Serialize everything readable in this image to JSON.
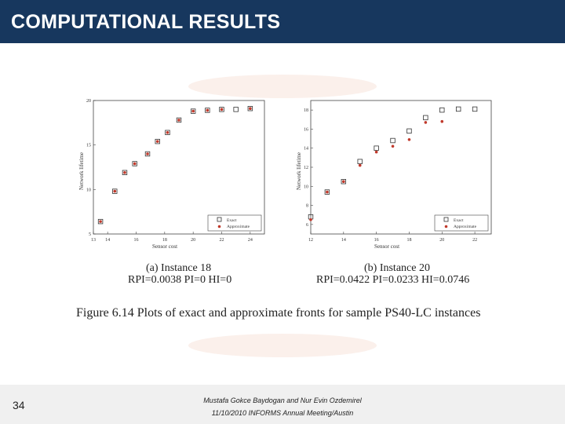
{
  "slide": {
    "title": "COMPUTATIONAL RESULTS"
  },
  "footer": {
    "page_number": "34",
    "authors": "Mustafa Gokce Baydogan and Nur Evin Ozdemirel",
    "event": "11/10/2010 INFORMS Annual Meeting/Austin"
  },
  "figure": {
    "caption": "Figure 6.14 Plots of exact and approximate fronts for sample PS40-LC instances",
    "panels": [
      {
        "subcaption": "(a) Instance 18",
        "metrics": "RPI=0.0038 PI=0 HI=0"
      },
      {
        "subcaption": "(b) Instance 20",
        "metrics": "RPI=0.0422 PI=0.0233 HI=0.0746"
      }
    ]
  },
  "colors": {
    "title_bar": "#17375e",
    "approx_marker": "#c0392b",
    "exact_marker": "#333333"
  },
  "chart_data": [
    {
      "type": "scatter",
      "xlabel": "Sensor cost",
      "ylabel": "Network lifetime",
      "xlim": [
        13,
        25
      ],
      "ylim": [
        5,
        20
      ],
      "xticks": [
        13,
        14,
        16,
        18,
        20,
        22,
        24
      ],
      "yticks": [
        5,
        10,
        15,
        20
      ],
      "series": [
        {
          "name": "Exact",
          "marker": "square",
          "x": [
            13.5,
            14.5,
            15.2,
            15.9,
            16.8,
            17.5,
            18.2,
            19.0,
            20.0,
            21.0,
            22.0,
            23.0,
            24.0
          ],
          "y": [
            6.4,
            9.8,
            11.9,
            12.9,
            14.0,
            15.4,
            16.4,
            17.8,
            18.8,
            18.9,
            19.0,
            19.0,
            19.1
          ]
        },
        {
          "name": "Approximate",
          "marker": "dot",
          "x": [
            13.5,
            14.5,
            15.2,
            15.9,
            16.8,
            17.5,
            18.2,
            19.0,
            20.0,
            21.0,
            22.0,
            24.0
          ],
          "y": [
            6.4,
            9.8,
            11.9,
            12.9,
            14.0,
            15.4,
            16.4,
            17.8,
            18.8,
            18.9,
            19.0,
            19.1
          ]
        }
      ],
      "legend_position": "bottom-right"
    },
    {
      "type": "scatter",
      "xlabel": "Sensor cost",
      "ylabel": "Network lifetime",
      "xlim": [
        12,
        23
      ],
      "ylim": [
        5,
        19
      ],
      "xticks": [
        12,
        14,
        16,
        18,
        20,
        22
      ],
      "yticks": [
        6,
        8,
        10,
        12,
        14,
        16,
        18
      ],
      "series": [
        {
          "name": "Exact",
          "marker": "square",
          "x": [
            12.0,
            13.0,
            14.0,
            15.0,
            16.0,
            17.0,
            18.0,
            19.0,
            20.0,
            21.0,
            22.0
          ],
          "y": [
            6.8,
            9.4,
            10.5,
            12.6,
            14.0,
            14.8,
            15.8,
            17.2,
            18.0,
            18.1,
            18.1
          ]
        },
        {
          "name": "Approximate",
          "marker": "dot",
          "x": [
            12.0,
            13.0,
            14.0,
            15.0,
            16.0,
            17.0,
            18.0,
            19.0,
            20.0
          ],
          "y": [
            6.5,
            9.4,
            10.5,
            12.2,
            13.6,
            14.2,
            14.9,
            16.7,
            16.8
          ]
        }
      ],
      "legend_position": "bottom-right"
    }
  ]
}
